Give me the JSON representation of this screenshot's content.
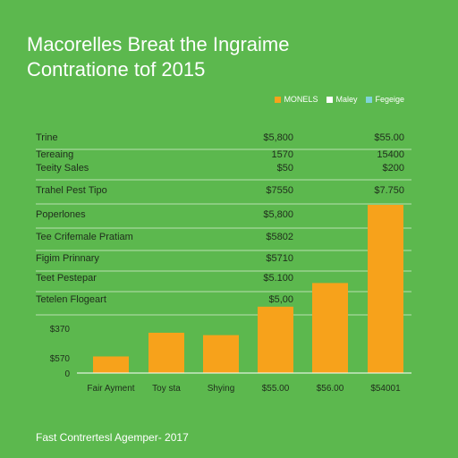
{
  "header": {
    "title_line1": "Macorelles Breat the Ingraime",
    "title_line2": "Contratione tof 2015"
  },
  "legend": [
    {
      "label": "MONELS",
      "color": "#f7a21b"
    },
    {
      "label": "Maley",
      "color": "#ffffff"
    },
    {
      "label": "Fegeige",
      "color": "#7fd3d8"
    }
  ],
  "rows": [
    {
      "label": "Trine",
      "mid": "$5,800",
      "right": "$55.00"
    },
    {
      "label": "Tereaing",
      "mid": "1570",
      "right": "15400"
    },
    {
      "label": "Teeity Sales",
      "mid": "$50",
      "right": "$200"
    },
    {
      "label": "Trahel Pest Tipo",
      "mid": "$7550",
      "right": "$7.750"
    },
    {
      "label": "Poperlones",
      "mid": "$5,800",
      "right": ""
    },
    {
      "label": "Tee Crifemale Pratiam",
      "mid": "$5802",
      "right": ""
    },
    {
      "label": "Figim Prinnary",
      "mid": "$5710",
      "right": ""
    },
    {
      "label": "Teet Pestepar",
      "mid": "$5.100",
      "right": ""
    },
    {
      "label": "Tetelen Flogeart",
      "mid": "$5,00",
      "right": ""
    }
  ],
  "chart_data": {
    "type": "bar",
    "categories": [
      "Fair Ayment",
      "Toy sta",
      "Shying",
      "$55.00",
      "$56.00",
      "$54001"
    ],
    "series": [
      {
        "values": [
          70,
          170,
          160,
          280,
          380,
          710
        ],
        "color": "#f7a21b"
      }
    ],
    "ytick_labels": [
      "$370",
      "$570",
      "0"
    ],
    "ylim": [
      0,
      720
    ],
    "grid": true
  },
  "footer": {
    "text": "Fast Contrertesl Agemper- 2017"
  }
}
